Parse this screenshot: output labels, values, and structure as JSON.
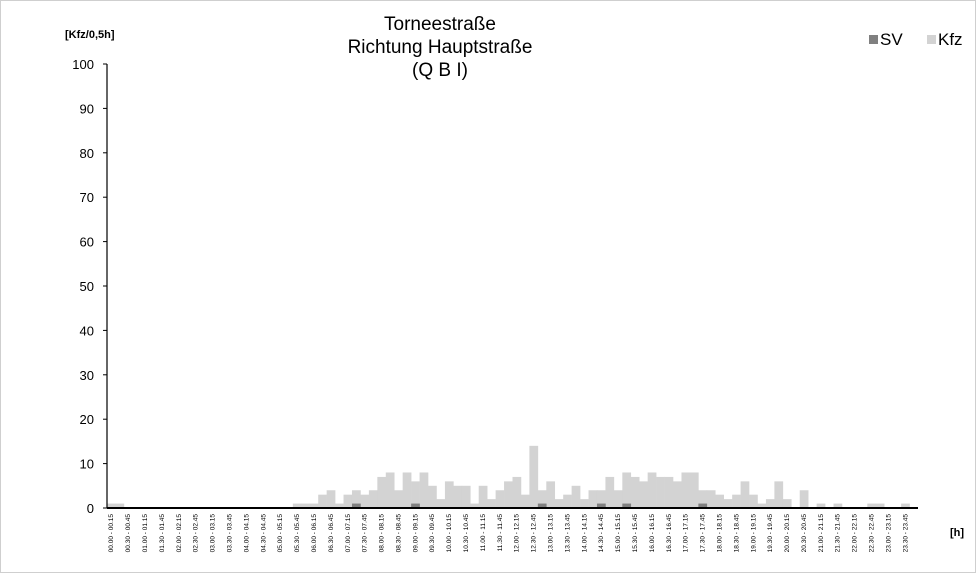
{
  "chart_data": {
    "type": "bar",
    "title": [
      "Torneestraße",
      "Richtung Hauptstraße",
      "(Q B I)"
    ],
    "ylabel": "[Kfz/0,5h]",
    "xlabel": "[h]",
    "ylim": [
      0,
      100
    ],
    "yticks": [
      0,
      10,
      20,
      30,
      40,
      50,
      60,
      70,
      80,
      90,
      100
    ],
    "legend": {
      "position": "top-right",
      "entries": [
        "SV",
        "Kfz"
      ]
    },
    "colors": {
      "SV": "#808080",
      "Kfz": "#d3d3d3",
      "axis": "#000000"
    },
    "categories": [
      "00.00 - 00.15",
      "00.15 - 00.30",
      "00.30 - 00.45",
      "00.45 - 01.00",
      "01.00 - 01.15",
      "01.15 - 01.30",
      "01.30 - 01.45",
      "01.45 - 02.00",
      "02.00 - 02.15",
      "02.15 - 02.30",
      "02.30 - 02.45",
      "02.45 - 03.00",
      "03.00 - 03.15",
      "03.15 - 03.30",
      "03.30 - 03.45",
      "03.45 - 04.00",
      "04.00 - 04.15",
      "04.15 - 04.30",
      "04.30 - 04.45",
      "04.45 - 05.00",
      "05.00 - 05.15",
      "05.15 - 05.30",
      "05.30 - 05.45",
      "05.45 - 06.00",
      "06.00 - 06.15",
      "06.15 - 06.30",
      "06.30 - 06.45",
      "06.45 - 07.00",
      "07.00 - 07.15",
      "07.15 - 07.30",
      "07.30 - 07.45",
      "07.45 - 08.00",
      "08.00 - 08.15",
      "08.15 - 08.30",
      "08.30 - 08.45",
      "08.45 - 09.00",
      "09.00 - 09.15",
      "09.15 - 09.30",
      "09.30 - 09.45",
      "09.45 - 10.00",
      "10.00 - 10.15",
      "10.15 - 10.30",
      "10.30 - 10.45",
      "10.45 - 11.00",
      "11.00 - 11.15",
      "11.15 - 11.30",
      "11.30 - 11.45",
      "11.45 - 12.00",
      "12.00 - 12.15",
      "12.15 - 12.30",
      "12.30 - 12.45",
      "12.45 - 13.00",
      "13.00 - 13.15",
      "13.15 - 13.30",
      "13.30 - 13.45",
      "13.45 - 14.00",
      "14.00 - 14.15",
      "14.15 - 14.30",
      "14.30 - 14.45",
      "14.45 - 15.00",
      "15.00 - 15.15",
      "15.15 - 15.30",
      "15.30 - 15.45",
      "15.45 - 16.00",
      "16.00 - 16.15",
      "16.15 - 16.30",
      "16.30 - 16.45",
      "16.45 - 17.00",
      "17.00 - 17.15",
      "17.15 - 17.30",
      "17.30 - 17.45",
      "17.45 - 18.00",
      "18.00 - 18.15",
      "18.15 - 18.30",
      "18.30 - 18.45",
      "18.45 - 19.00",
      "19.00 - 19.15",
      "19.15 - 19.30",
      "19.30 - 19.45",
      "19.45 - 20.00",
      "20.00 - 20.15",
      "20.15 - 20.30",
      "20.30 - 20.45",
      "20.45 - 21.00",
      "21.00 - 21.15",
      "21.15 - 21.30",
      "21.30 - 21.45",
      "21.45 - 22.00",
      "22.00 - 22.15",
      "22.15 - 22.30",
      "22.30 - 22.45",
      "22.45 - 23.00",
      "23.00 - 23.15",
      "23.15 - 23.30",
      "23.30 - 23.45",
      "23.45 - 00.00"
    ],
    "series": [
      {
        "name": "Kfz",
        "values": [
          1,
          1,
          0,
          0,
          0,
          0,
          0,
          0,
          0,
          0,
          0,
          0,
          0,
          0,
          0,
          0,
          0,
          0,
          0,
          0,
          0,
          0,
          1,
          1,
          1,
          3,
          4,
          1,
          3,
          4,
          3,
          4,
          7,
          8,
          4,
          8,
          6,
          8,
          5,
          2,
          6,
          5,
          5,
          1,
          5,
          2,
          4,
          6,
          7,
          3,
          14,
          4,
          6,
          2,
          3,
          5,
          2,
          4,
          4,
          7,
          4,
          8,
          7,
          6,
          8,
          7,
          7,
          6,
          8,
          8,
          4,
          4,
          3,
          2,
          3,
          6,
          3,
          1,
          2,
          6,
          2,
          0,
          4,
          0,
          1,
          0,
          1,
          0,
          0,
          0,
          1,
          1,
          0,
          0,
          1,
          0
        ]
      },
      {
        "name": "SV",
        "values": [
          0,
          0,
          0,
          0,
          0,
          0,
          0,
          0,
          0,
          0,
          0,
          0,
          0,
          0,
          0,
          0,
          0,
          0,
          0,
          0,
          0,
          0,
          0,
          0,
          0,
          0,
          0,
          0,
          0,
          1,
          0,
          0,
          0,
          0,
          0,
          0,
          1,
          0,
          0,
          0,
          0,
          0,
          0,
          0,
          0,
          0,
          0,
          0,
          0,
          0,
          0,
          1,
          0,
          0,
          0,
          0,
          0,
          0,
          1,
          0,
          0,
          1,
          0,
          0,
          0,
          0,
          0,
          0,
          0,
          0,
          1,
          0,
          0,
          0,
          0,
          0,
          0,
          0,
          0,
          0,
          0,
          0,
          0,
          0,
          0,
          0,
          0,
          0,
          0,
          0,
          0,
          0,
          0,
          0,
          0,
          0
        ]
      }
    ]
  }
}
